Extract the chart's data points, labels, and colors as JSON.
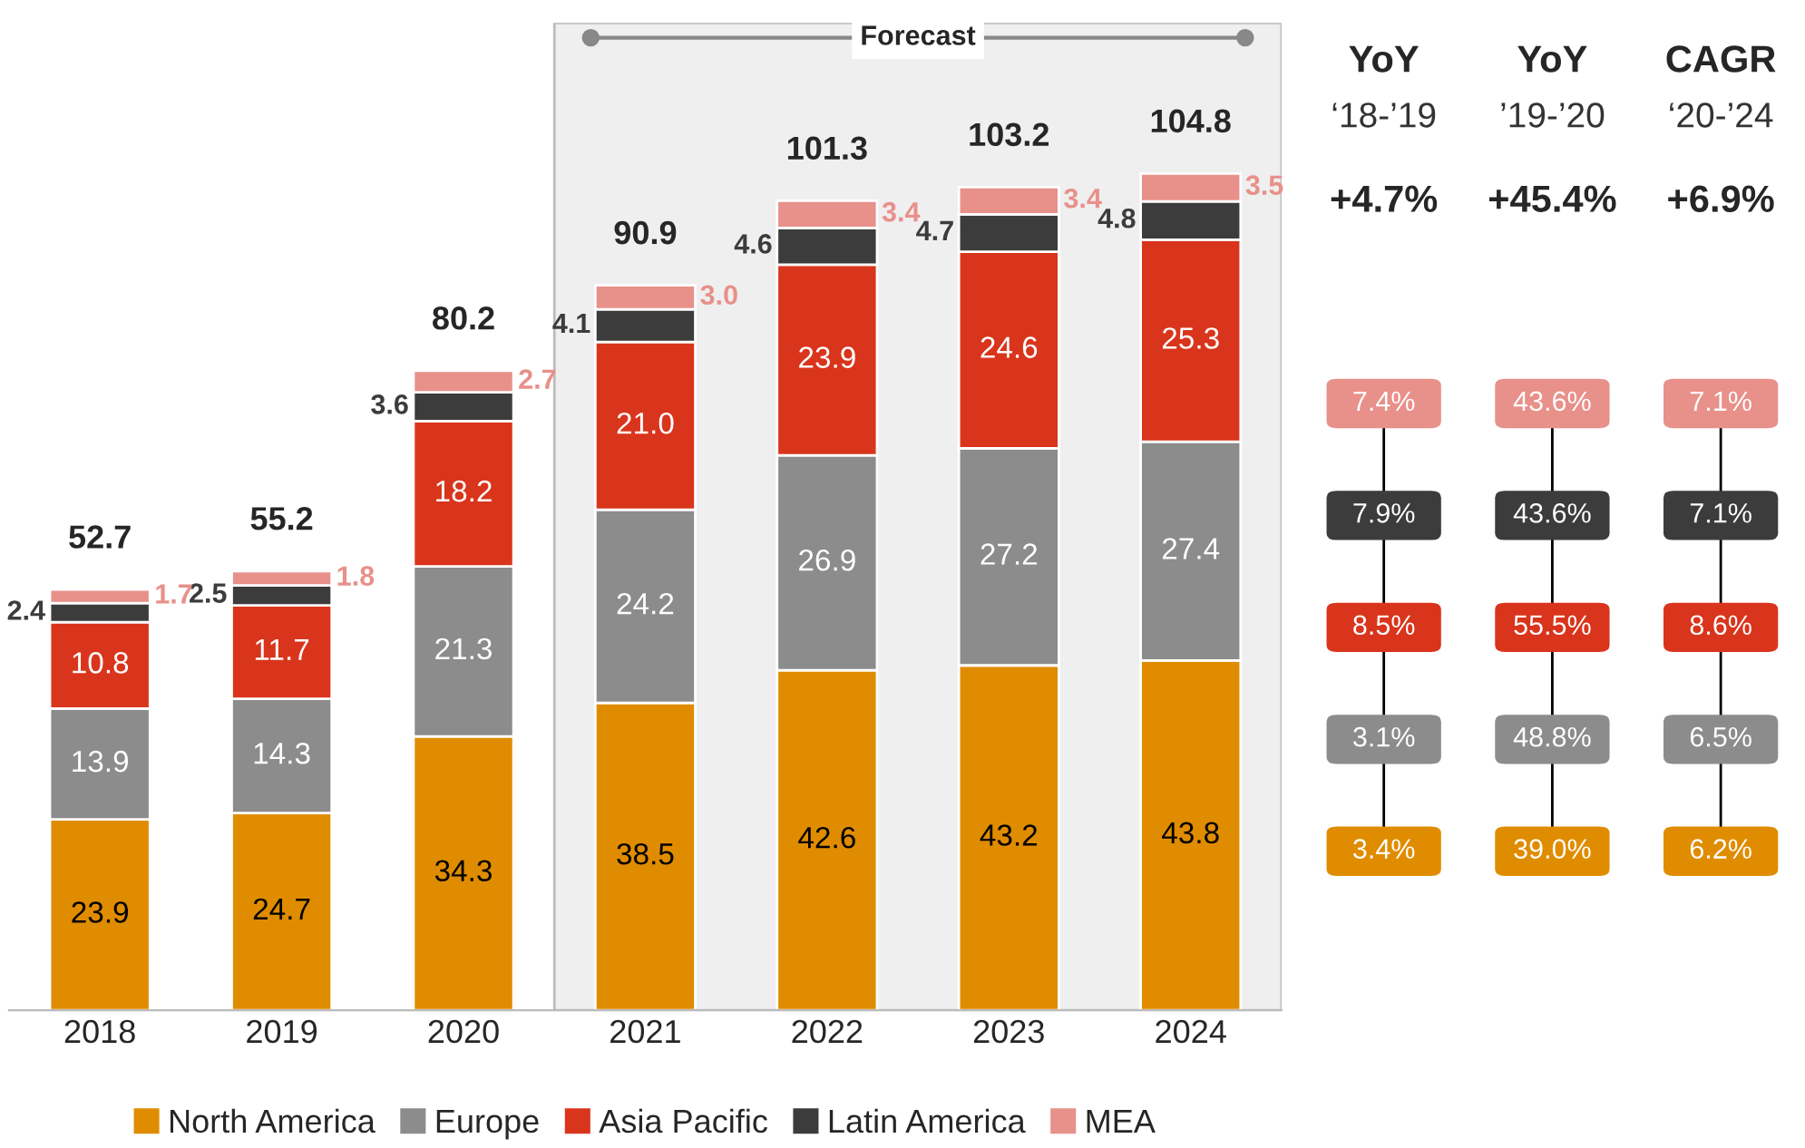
{
  "chart_data": [
    {
      "type": "bar",
      "stacked": true,
      "categories": [
        "2018",
        "2019",
        "2020",
        "2021",
        "2022",
        "2023",
        "2024"
      ],
      "series": [
        {
          "name": "North America",
          "color": "#e08c00",
          "values": [
            23.9,
            24.7,
            34.3,
            38.5,
            42.6,
            43.2,
            43.8
          ],
          "value_labels": [
            "23.9",
            "24.7",
            "34.3",
            "38.5",
            "42.6",
            "43.2",
            "43.8"
          ]
        },
        {
          "name": "Europe",
          "color": "#8c8c8c",
          "values": [
            13.9,
            14.3,
            21.3,
            24.2,
            26.9,
            27.2,
            27.4
          ],
          "value_labels": [
            "13.9",
            "14.3",
            "21.3",
            "24.2",
            "26.9",
            "27.2",
            "27.4"
          ]
        },
        {
          "name": "Asia Pacific",
          "color": "#d9351c",
          "values": [
            10.8,
            11.7,
            18.2,
            21.0,
            23.9,
            24.6,
            25.3
          ],
          "value_labels": [
            "10.8",
            "11.7",
            "18.2",
            "21.0",
            "23.9",
            "24.6",
            "25.3"
          ]
        },
        {
          "name": "Latin America",
          "color": "#3c3c3c",
          "values": [
            2.4,
            2.5,
            3.6,
            4.1,
            4.6,
            4.7,
            4.8
          ],
          "value_labels": [
            "2.4",
            "2.5",
            "3.6",
            "4.1",
            "4.6",
            "4.7",
            "4.8"
          ]
        },
        {
          "name": "MEA",
          "color": "#e8908a",
          "values": [
            1.7,
            1.8,
            2.7,
            3.0,
            3.4,
            3.4,
            3.5
          ],
          "value_labels": [
            "1.7",
            "1.8",
            "2.7",
            "3.0",
            "3.4",
            "3.4",
            "3.5"
          ]
        }
      ],
      "data_labels": true,
      "totals": [
        "52.7",
        "55.2",
        "80.2",
        "90.9",
        "101.3",
        "103.2",
        "104.8"
      ],
      "bands": [
        {
          "axis": "x",
          "from": "2021",
          "to": "2024",
          "label": "Forecast",
          "color": "#efefef"
        }
      ],
      "legend": "bottom",
      "grid": false
    },
    {
      "type": "other",
      "categories": [
        "YoY\n‘18-’19",
        "YoY\n’19-’20",
        "CAGR\n‘20-’24"
      ],
      "annotations": [
        "+4.7%",
        "+45.4%",
        "+6.9%"
      ],
      "series": [
        {
          "color": "#e08c00",
          "values": [
            3.4,
            39.0,
            6.2
          ],
          "value_labels": [
            "3.4%",
            "39.0%",
            "6.2%"
          ]
        },
        {
          "color": "#8c8c8c",
          "values": [
            3.1,
            48.8,
            6.5
          ],
          "value_labels": [
            "3.1%",
            "48.8%",
            "6.5%"
          ]
        },
        {
          "color": "#d9351c",
          "values": [
            8.5,
            55.5,
            8.6
          ],
          "value_labels": [
            "8.5%",
            "55.5%",
            "8.6%"
          ]
        },
        {
          "color": "#3c3c3c",
          "values": [
            7.9,
            43.6,
            7.1
          ],
          "value_labels": [
            "7.9%",
            "43.6%",
            "7.1%"
          ]
        },
        {
          "color": "#e8908a",
          "values": [
            7.4,
            43.6,
            7.1
          ],
          "value_labels": [
            "7.4%",
            "43.6%",
            "7.1%"
          ]
        }
      ]
    }
  ]
}
